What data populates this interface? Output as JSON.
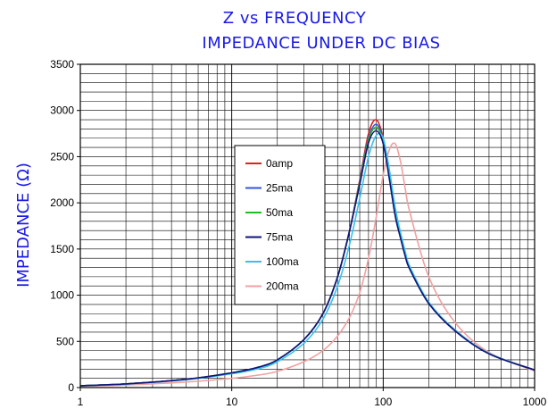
{
  "chart_data": {
    "type": "line",
    "title": "Z vs FREQUENCY",
    "subtitle": "IMPEDANCE UNDER DC BIAS",
    "xlabel": "",
    "ylabel": "IMPEDANCE (Ω)",
    "xscale": "log",
    "xlim": [
      1,
      1000
    ],
    "ylim": [
      0,
      3500
    ],
    "x_tick_labels": [
      "1",
      "10",
      "100",
      "1000"
    ],
    "y_tick_labels": [
      "0",
      "500",
      "1000",
      "1500",
      "2000",
      "2500",
      "3000",
      "3500"
    ],
    "grid": true,
    "legend_position": "center-left",
    "x": [
      1,
      2,
      5,
      10,
      15,
      20,
      30,
      40,
      50,
      60,
      70,
      80,
      90,
      100,
      110,
      120,
      130,
      140,
      150,
      200,
      300,
      500,
      1000
    ],
    "series": [
      {
        "name": "0amp",
        "color": "#e02020",
        "values": [
          20,
          40,
          90,
          160,
          220,
          300,
          520,
          800,
          1200,
          1700,
          2250,
          2750,
          2900,
          2700,
          2300,
          1900,
          1650,
          1450,
          1300,
          920,
          620,
          370,
          190
        ]
      },
      {
        "name": "25ma",
        "color": "#3355dd",
        "values": [
          20,
          40,
          90,
          160,
          220,
          300,
          520,
          800,
          1200,
          1700,
          2230,
          2700,
          2850,
          2680,
          2280,
          1880,
          1640,
          1440,
          1290,
          915,
          615,
          368,
          190
        ]
      },
      {
        "name": "50ma",
        "color": "#22bb22",
        "values": [
          20,
          40,
          90,
          160,
          220,
          300,
          520,
          800,
          1200,
          1700,
          2220,
          2680,
          2820,
          2660,
          2270,
          1870,
          1630,
          1430,
          1285,
          912,
          612,
          366,
          190
        ]
      },
      {
        "name": "75ma",
        "color": "#12127a",
        "values": [
          20,
          40,
          90,
          160,
          220,
          300,
          520,
          800,
          1200,
          1700,
          2200,
          2650,
          2780,
          2640,
          2250,
          1860,
          1620,
          1420,
          1280,
          910,
          610,
          365,
          190
        ]
      },
      {
        "name": "100ma",
        "color": "#33c3ee",
        "values": [
          19,
          38,
          85,
          150,
          205,
          280,
          480,
          740,
          1100,
          1550,
          2050,
          2500,
          2730,
          2700,
          2350,
          1950,
          1680,
          1470,
          1310,
          925,
          620,
          370,
          190
        ]
      },
      {
        "name": "200ma",
        "color": "#f2a0a0",
        "values": [
          15,
          28,
          60,
          100,
          135,
          175,
          280,
          400,
          560,
          760,
          1030,
          1400,
          1850,
          2300,
          2580,
          2640,
          2450,
          2150,
          1900,
          1200,
          700,
          380,
          180
        ]
      }
    ]
  }
}
